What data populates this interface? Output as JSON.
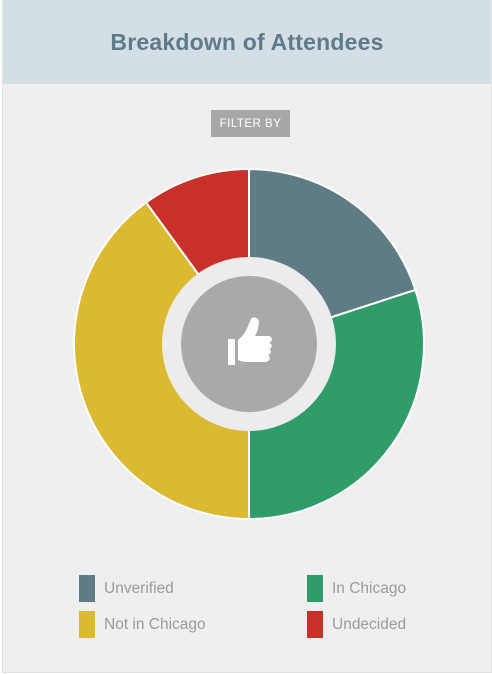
{
  "header": {
    "title": "Breakdown of Attendees"
  },
  "filter": {
    "label": "FILTER BY"
  },
  "center_icon": "thumbs-up-icon",
  "colors": {
    "unverified": "#5f7b84",
    "in_chicago": "#2f9c69",
    "not_in_chicago": "#dbb931",
    "undecided": "#c83129",
    "hole": "#a9a9a9",
    "hole_ring": "#ececec"
  },
  "chart_data": {
    "type": "pie",
    "donut": true,
    "title": "Breakdown of Attendees",
    "slices": [
      {
        "label": "Unverified",
        "value": 20,
        "color": "#5f7b84"
      },
      {
        "label": "In Chicago",
        "value": 30,
        "color": "#2f9c69"
      },
      {
        "label": "Not in Chicago",
        "value": 40,
        "color": "#dbb931"
      },
      {
        "label": "Undecided",
        "value": 10,
        "color": "#c83129"
      }
    ],
    "legend_placement": "bottom"
  },
  "legend": [
    {
      "label": "Unverified",
      "color": "#5f7b84"
    },
    {
      "label": "In Chicago",
      "color": "#2f9c69"
    },
    {
      "label": "Not in Chicago",
      "color": "#dbb931"
    },
    {
      "label": "Undecided",
      "color": "#c83129"
    }
  ]
}
